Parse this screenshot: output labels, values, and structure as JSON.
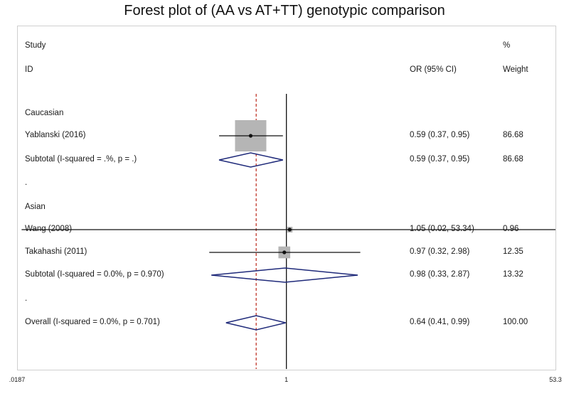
{
  "chart_data": {
    "type": "forest",
    "title": "Forest plot of (AA vs AT+TT) genotypic comparison",
    "header": {
      "study": "Study",
      "id": "ID",
      "or_ci": "OR (95% CI)",
      "pct": "%",
      "weight": "Weight"
    },
    "xaxis": {
      "scale": "log",
      "min": 0.0187,
      "max": 53.3,
      "null_line": 1,
      "ticks": [
        ".0187",
        "1",
        "53.3"
      ]
    },
    "overall_reference_line": 0.64,
    "rows": [
      {
        "kind": "group",
        "label": "Caucasian"
      },
      {
        "kind": "study",
        "label": "Yablanski (2016)",
        "or": 0.59,
        "lo": 0.37,
        "hi": 0.95,
        "ci_text": "0.59 (0.37, 0.95)",
        "weight": "86.68"
      },
      {
        "kind": "subtotal",
        "label": "Subtotal  (I-squared = .%, p = .)",
        "or": 0.59,
        "lo": 0.37,
        "hi": 0.95,
        "ci_text": "0.59 (0.37, 0.95)",
        "weight": "86.68"
      },
      {
        "kind": "spacer",
        "label": "."
      },
      {
        "kind": "group",
        "label": "Asian"
      },
      {
        "kind": "study",
        "label": "Wang (2008)",
        "or": 1.05,
        "lo": 0.02,
        "hi": 53.34,
        "ci_text": "1.05 (0.02, 53.34)",
        "weight": "0.96"
      },
      {
        "kind": "study",
        "label": "Takahashi (2011)",
        "or": 0.97,
        "lo": 0.32,
        "hi": 2.98,
        "ci_text": "0.97 (0.32, 2.98)",
        "weight": "12.35"
      },
      {
        "kind": "subtotal",
        "label": "Subtotal  (I-squared = 0.0%, p = 0.970)",
        "or": 0.98,
        "lo": 0.33,
        "hi": 2.87,
        "ci_text": "0.98 (0.33, 2.87)",
        "weight": "13.32"
      },
      {
        "kind": "spacer",
        "label": "."
      },
      {
        "kind": "overall",
        "label": "Overall  (I-squared = 0.0%, p = 0.701)",
        "or": 0.64,
        "lo": 0.41,
        "hi": 0.99,
        "ci_text": "0.64 (0.41, 0.99)",
        "weight": "100.00"
      }
    ],
    "colors": {
      "box": "#b5b5b5",
      "diamond": "#1f2a7a",
      "ref_line": "#c0392b",
      "line": "#111111"
    }
  }
}
